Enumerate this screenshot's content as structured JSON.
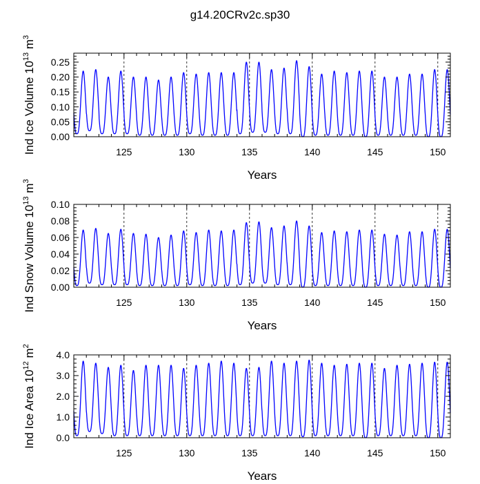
{
  "title": "g14.20CRv2c.sp30",
  "colors": {
    "series": "#0000ff",
    "axis": "#000000",
    "refline": "#000000"
  },
  "chart_data": [
    {
      "type": "line",
      "title": "",
      "xlabel": "Years",
      "ylabel": "Ind Ice Volume 10",
      "ylabel_exp": "13",
      "ylabel_unit": "m",
      "ylabel_unit_exp": "3",
      "xlim": [
        121.0,
        151.0
      ],
      "ylim": [
        0.0,
        0.28
      ],
      "xticks": [
        125,
        130,
        135,
        140,
        145,
        150
      ],
      "xtick_labels": [
        "125",
        "130",
        "135",
        "140",
        "145",
        "150"
      ],
      "yticks": [
        0,
        0.05,
        0.1,
        0.15,
        0.2,
        0.25
      ],
      "ytick_labels": [
        "0.00",
        "0.05",
        "0.10",
        "0.15",
        "0.20",
        "0.25"
      ],
      "grid": "vertical dashed reference lines at 125, 130, 135, 140, 145, 150",
      "annual_max": [
        0.22,
        0.225,
        0.2,
        0.22,
        0.2,
        0.2,
        0.19,
        0.2,
        0.215,
        0.21,
        0.215,
        0.215,
        0.215,
        0.25,
        0.25,
        0.225,
        0.23,
        0.255,
        0.235,
        0.21,
        0.22,
        0.215,
        0.22,
        0.22,
        0.2,
        0.2,
        0.21,
        0.21,
        0.225
      ],
      "annual_min": [
        0.01,
        0.02,
        0.01,
        0.01,
        0.01,
        0.005,
        0.005,
        0.005,
        0.005,
        0.01,
        0.005,
        0.005,
        0.005,
        0.01,
        0.015,
        0.015,
        0.01,
        0.01,
        0.0,
        0.005,
        0.005,
        0.005,
        0.005,
        0.0,
        0.005,
        0.005,
        0.005,
        0.005,
        0.0
      ]
    },
    {
      "type": "line",
      "title": "",
      "xlabel": "Years",
      "ylabel": "Ind Snow Volume 10",
      "ylabel_exp": "13",
      "ylabel_unit": "m",
      "ylabel_unit_exp": "3",
      "xlim": [
        121.0,
        151.0
      ],
      "ylim": [
        0.0,
        0.1
      ],
      "xticks": [
        125,
        130,
        135,
        140,
        145,
        150
      ],
      "xtick_labels": [
        "125",
        "130",
        "135",
        "140",
        "145",
        "150"
      ],
      "yticks": [
        0,
        0.02,
        0.04,
        0.06,
        0.08,
        0.1
      ],
      "ytick_labels": [
        "0.00",
        "0.02",
        "0.04",
        "0.06",
        "0.08",
        "0.10"
      ],
      "grid": "vertical dashed reference lines at 125, 130, 135, 140, 145, 150",
      "annual_max": [
        0.069,
        0.071,
        0.065,
        0.07,
        0.065,
        0.064,
        0.06,
        0.063,
        0.068,
        0.066,
        0.069,
        0.068,
        0.069,
        0.078,
        0.079,
        0.072,
        0.074,
        0.08,
        0.074,
        0.066,
        0.068,
        0.067,
        0.069,
        0.069,
        0.064,
        0.063,
        0.067,
        0.067,
        0.07
      ],
      "annual_min": [
        0.002,
        0.005,
        0.003,
        0.003,
        0.003,
        0.002,
        0.002,
        0.002,
        0.002,
        0.003,
        0.002,
        0.002,
        0.002,
        0.003,
        0.005,
        0.005,
        0.003,
        0.003,
        0.0,
        0.002,
        0.002,
        0.002,
        0.002,
        0.0,
        0.002,
        0.002,
        0.002,
        0.002,
        0.0
      ]
    },
    {
      "type": "line",
      "title": "",
      "xlabel": "Years",
      "ylabel": "Ind Ice Area 10",
      "ylabel_exp": "12",
      "ylabel_unit": "m",
      "ylabel_unit_exp": "2",
      "xlim": [
        121.0,
        151.0
      ],
      "ylim": [
        0.0,
        4.0
      ],
      "xticks": [
        125,
        130,
        135,
        140,
        145,
        150
      ],
      "xtick_labels": [
        "125",
        "130",
        "135",
        "140",
        "145",
        "150"
      ],
      "yticks": [
        0,
        1,
        2,
        3,
        4
      ],
      "ytick_labels": [
        "0.0",
        "1.0",
        "2.0",
        "3.0",
        "4.0"
      ],
      "grid": "vertical dashed reference lines at 125, 130, 135, 140, 145, 150",
      "annual_max": [
        3.7,
        3.6,
        3.4,
        3.5,
        3.25,
        3.5,
        3.5,
        3.5,
        3.35,
        3.5,
        3.6,
        3.7,
        3.6,
        3.35,
        3.4,
        3.7,
        3.6,
        3.7,
        3.75,
        3.6,
        3.5,
        3.55,
        3.6,
        3.6,
        3.35,
        3.5,
        3.55,
        3.6,
        3.65
      ],
      "annual_min": [
        0.1,
        0.3,
        0.2,
        0.1,
        0.1,
        0.1,
        0.1,
        0.1,
        0.1,
        0.1,
        0.1,
        0.1,
        0.1,
        0.1,
        0.1,
        0.1,
        0.1,
        0.1,
        0.05,
        0.1,
        0.1,
        0.1,
        0.1,
        0.0,
        0.1,
        0.1,
        0.1,
        0.1,
        0.0
      ]
    }
  ]
}
